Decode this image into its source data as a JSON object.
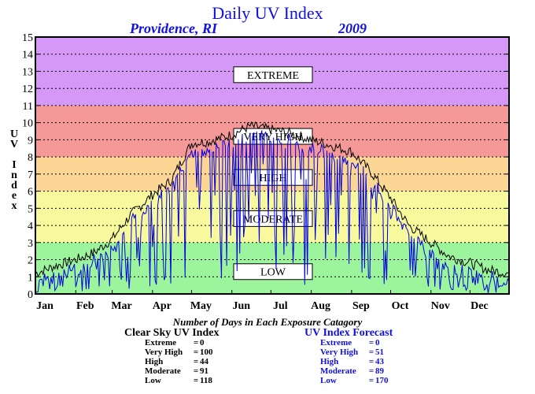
{
  "chart_data": {
    "type": "line",
    "title": "Daily UV Index",
    "subtitle_location": "Providence, RI",
    "subtitle_year": "2009",
    "ylabel": "UV Index",
    "ylim": [
      0,
      15
    ],
    "yticks": [
      "0",
      "1",
      "2",
      "3",
      "4",
      "5",
      "6",
      "7",
      "8",
      "9",
      "10",
      "11",
      "12",
      "13",
      "14",
      "15"
    ],
    "months": [
      "Jan",
      "Feb",
      "Mar",
      "Apr",
      "May",
      "Jun",
      "Jul",
      "Aug",
      "Sep",
      "Oct",
      "Nov",
      "Dec"
    ],
    "grid": true,
    "bands": [
      {
        "label": "LOW",
        "from": 0,
        "to": 3,
        "color": "#9cf59c"
      },
      {
        "label": "MODERATE",
        "from": 3,
        "to": 6,
        "color": "#f8f89c"
      },
      {
        "label": "HIGH",
        "from": 6,
        "to": 8,
        "color": "#fbd694"
      },
      {
        "label": "VERY HIGH",
        "from": 8,
        "to": 11,
        "color": "#f59898"
      },
      {
        "label": "EXTREME",
        "from": 11,
        "to": 15,
        "color": "#d598f7"
      }
    ],
    "series": [
      {
        "name": "Clear Sky UV Index",
        "color": "#000000",
        "x": [
          1,
          15,
          32,
          46,
          60,
          74,
          91,
          105,
          121,
          135,
          152,
          166,
          182,
          196,
          213,
          227,
          244,
          258,
          274,
          288,
          305,
          319,
          335,
          349,
          365
        ],
        "y": [
          1.2,
          1.6,
          2.0,
          2.4,
          3.2,
          4.6,
          5.8,
          6.6,
          8.8,
          8.9,
          9.3,
          9.8,
          9.6,
          9.4,
          9.0,
          8.7,
          8.3,
          7.2,
          5.6,
          4.0,
          3.0,
          2.2,
          1.8,
          1.4,
          1.2
        ]
      },
      {
        "name": "UV Index Forecast",
        "color": "#0000e0",
        "values_note": ""
      }
    ]
  },
  "stats": {
    "heading": "Number of Days in Each Exposure Catagory",
    "clear_title": "Clear Sky UV Index",
    "forecast_title": "UV Index Forecast",
    "clear": [
      {
        "label": "Extreme",
        "value": "0"
      },
      {
        "label": "Very High",
        "value": "100"
      },
      {
        "label": "High",
        "value": "44"
      },
      {
        "label": "Moderate",
        "value": "91"
      },
      {
        "label": "Low",
        "value": "118"
      }
    ],
    "forecast": [
      {
        "label": "Extreme",
        "value": "0"
      },
      {
        "label": "Very High",
        "value": "51"
      },
      {
        "label": "High",
        "value": "43"
      },
      {
        "label": "Moderate",
        "value": "89"
      },
      {
        "label": "Low",
        "value": "170"
      }
    ]
  }
}
